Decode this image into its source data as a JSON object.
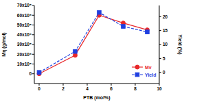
{
  "chart_data": {
    "type": "line",
    "x_label": "PTB (mol%)",
    "y_label": "Mη (g/mol)",
    "y2_label": "Yield (%)",
    "x": [
      0,
      3,
      5,
      7,
      9
    ],
    "xlim": [
      -0.4,
      10
    ],
    "xticks": [
      0,
      2,
      4,
      6,
      8,
      10
    ],
    "ylim": [
      -1000000,
      7000000
    ],
    "yticks": [
      {
        "value": 0,
        "label": "0"
      },
      {
        "value": 1000000,
        "label": "10x10⁵"
      },
      {
        "value": 2000000,
        "label": "20x10⁵"
      },
      {
        "value": 3000000,
        "label": "30x10⁵"
      },
      {
        "value": 4000000,
        "label": "40x10⁵"
      },
      {
        "value": 5000000,
        "label": "50x10⁵"
      },
      {
        "value": 6000000,
        "label": "60x10⁵"
      },
      {
        "value": 7000000,
        "label": "70x10⁵"
      }
    ],
    "y2lim": [
      -4,
      24
    ],
    "y2ticks": [
      0,
      5,
      10,
      15,
      20
    ],
    "legend": "lower right",
    "series": [
      {
        "name": "Mv",
        "color": "#e8272a",
        "marker": "circle",
        "line_style": "solid",
        "values": [
          0,
          1900000,
          6000000,
          5200000,
          4500000
        ]
      },
      {
        "name": "Yield",
        "color": "#1f3fe0",
        "marker": "square",
        "line_style": "dashed",
        "axis": "y2",
        "values": [
          0,
          7.5,
          21.5,
          16.5,
          14.5
        ]
      }
    ]
  }
}
